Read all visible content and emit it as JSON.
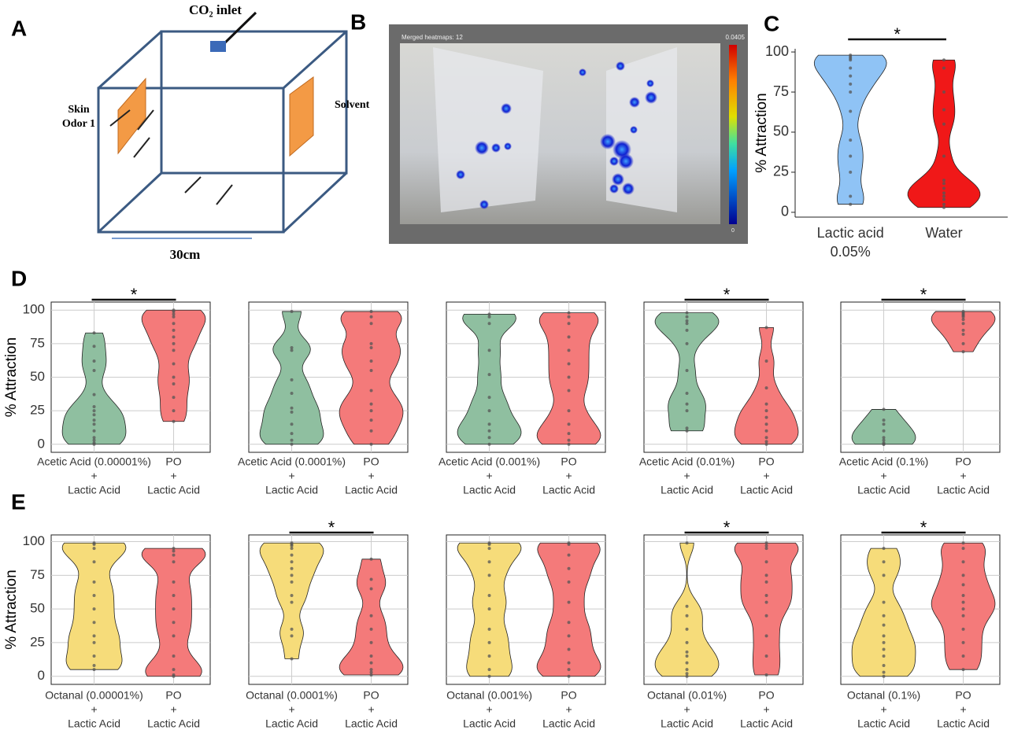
{
  "diagram": {
    "panel": "A",
    "inlet": "CO₂ inlet",
    "left_label": [
      "Skin",
      "Odor 1"
    ],
    "right_label": "Solvent",
    "scale": "30cm"
  },
  "heatmap": {
    "panel": "B",
    "caption": "Merged heatmaps: 12",
    "cbar_max": "0.0405",
    "cbar_min": "0"
  },
  "chart_data": [
    {
      "type": "violin",
      "panel": "C",
      "ylabel": "% Attraction",
      "ylim": [
        -3,
        102
      ],
      "yticks": [
        0,
        25,
        50,
        75,
        100
      ],
      "grid": false,
      "significance": "*",
      "categories": [
        [
          "Lactic acid",
          "0.05%"
        ],
        [
          "Water"
        ]
      ],
      "series": [
        {
          "color": "#8fc3f5",
          "values": [
            98,
            97,
            96,
            95,
            90,
            85,
            80,
            75,
            63,
            45,
            35,
            25,
            10,
            5
          ]
        },
        {
          "color": "#f01818",
          "values": [
            95,
            90,
            75,
            64,
            55,
            35,
            20,
            18,
            15,
            12,
            10,
            8,
            5,
            3
          ]
        }
      ]
    },
    {
      "type": "violin",
      "panel": "D",
      "ylabel": "% Attraction",
      "ylim": [
        -6,
        106
      ],
      "yticks": [
        0,
        25,
        50,
        75,
        100
      ],
      "tick_labels": true,
      "grid": true,
      "significance": "*",
      "categories": [
        [
          "Acetic Acid (0.00001%)",
          "+",
          "Lactic Acid"
        ],
        [
          "PO",
          "+",
          "Lactic Acid"
        ]
      ],
      "series": [
        {
          "color": "#8fbfa0",
          "values": [
            83,
            73,
            62,
            55,
            37,
            28,
            25,
            22,
            18,
            15,
            10,
            5,
            3,
            1,
            0
          ]
        },
        {
          "color": "#f47a7a",
          "values": [
            100,
            99,
            97,
            95,
            90,
            85,
            80,
            75,
            70,
            60,
            50,
            45,
            35,
            25,
            17
          ]
        }
      ]
    },
    {
      "type": "violin",
      "ylim": [
        -6,
        106
      ],
      "yticks": [
        0,
        25,
        50,
        75,
        100
      ],
      "tick_labels": false,
      "grid": true,
      "categories": [
        [
          "Acetic Acid (0.0001%)",
          "+",
          "Lactic Acid"
        ],
        [
          "PO",
          "+",
          "Lactic Acid"
        ]
      ],
      "series": [
        {
          "color": "#8fbfa0",
          "values": [
            99,
            72,
            70,
            48,
            38,
            27,
            24,
            15,
            8,
            3,
            0
          ]
        },
        {
          "color": "#f47a7a",
          "values": [
            99,
            95,
            90,
            75,
            72,
            62,
            55,
            40,
            30,
            25,
            18,
            10,
            0
          ]
        }
      ]
    },
    {
      "type": "violin",
      "ylim": [
        -6,
        106
      ],
      "yticks": [
        0,
        25,
        50,
        75,
        100
      ],
      "tick_labels": false,
      "grid": true,
      "categories": [
        [
          "Acetic Acid (0.001%)",
          "+",
          "Lactic Acid"
        ],
        [
          "PO",
          "+",
          "Lactic Acid"
        ]
      ],
      "series": [
        {
          "color": "#8fbfa0",
          "values": [
            97,
            95,
            90,
            70,
            52,
            35,
            25,
            15,
            10,
            5,
            0
          ]
        },
        {
          "color": "#f47a7a",
          "values": [
            98,
            95,
            90,
            80,
            70,
            60,
            50,
            40,
            25,
            15,
            8,
            3,
            0
          ]
        }
      ]
    },
    {
      "type": "violin",
      "ylim": [
        -6,
        106
      ],
      "yticks": [
        0,
        25,
        50,
        75,
        100
      ],
      "tick_labels": false,
      "grid": true,
      "significance": "*",
      "categories": [
        [
          "Acetic Acid (0.01%)",
          "+",
          "Lactic Acid"
        ],
        [
          "PO",
          "+",
          "Lactic Acid"
        ]
      ],
      "series": [
        {
          "color": "#8fbfa0",
          "values": [
            98,
            95,
            92,
            90,
            85,
            75,
            55,
            38,
            30,
            25,
            12,
            10
          ]
        },
        {
          "color": "#f47a7a",
          "values": [
            87,
            62,
            42,
            30,
            25,
            20,
            15,
            10,
            5,
            2,
            0
          ]
        }
      ]
    },
    {
      "type": "violin",
      "ylim": [
        -6,
        106
      ],
      "yticks": [
        0,
        25,
        50,
        75,
        100
      ],
      "tick_labels": false,
      "grid": true,
      "significance": "*",
      "categories": [
        [
          "Acetic Acid (0.1%)",
          "+",
          "Lactic Acid"
        ],
        [
          "PO",
          "+",
          "Lactic Acid"
        ]
      ],
      "series": [
        {
          "color": "#8fbfa0",
          "values": [
            26,
            18,
            15,
            10,
            5,
            3,
            1,
            0,
            0
          ]
        },
        {
          "color": "#f47a7a",
          "values": [
            99,
            98,
            97,
            96,
            95,
            93,
            90,
            85,
            82,
            75,
            69
          ]
        }
      ]
    },
    {
      "type": "violin",
      "panel": "E",
      "ylabel": "% Attraction",
      "ylim": [
        -6,
        105
      ],
      "yticks": [
        0,
        25,
        50,
        75,
        100
      ],
      "tick_labels": true,
      "grid": true,
      "categories": [
        [
          "Octanal (0.00001%)",
          "+",
          "Lactic Acid"
        ],
        [
          "PO",
          "+",
          "Lactic Acid"
        ]
      ],
      "series": [
        {
          "color": "#f6dc7a",
          "values": [
            99,
            98,
            95,
            85,
            70,
            60,
            50,
            40,
            30,
            25,
            15,
            8,
            5
          ]
        },
        {
          "color": "#f47a7a",
          "values": [
            95,
            93,
            90,
            85,
            70,
            60,
            50,
            40,
            30,
            15,
            5,
            1,
            0
          ]
        }
      ]
    },
    {
      "type": "violin",
      "ylim": [
        -6,
        105
      ],
      "yticks": [
        0,
        25,
        50,
        75,
        100
      ],
      "tick_labels": false,
      "grid": true,
      "significance": "*",
      "categories": [
        [
          "Octanal (0.0001%)",
          "+",
          "Lactic Acid"
        ],
        [
          "PO",
          "+",
          "Lactic Acid"
        ]
      ],
      "series": [
        {
          "color": "#f6dc7a",
          "values": [
            99,
            98,
            97,
            95,
            90,
            85,
            80,
            75,
            70,
            60,
            55,
            35,
            30,
            13
          ]
        },
        {
          "color": "#f47a7a",
          "values": [
            87,
            72,
            65,
            45,
            35,
            25,
            15,
            10,
            5,
            3,
            1
          ]
        }
      ]
    },
    {
      "type": "violin",
      "ylim": [
        -6,
        105
      ],
      "yticks": [
        0,
        25,
        50,
        75,
        100
      ],
      "tick_labels": false,
      "grid": true,
      "categories": [
        [
          "Octanal (0.001%)",
          "+",
          "Lactic Acid"
        ],
        [
          "PO",
          "+",
          "Lactic Acid"
        ]
      ],
      "series": [
        {
          "color": "#f6dc7a",
          "values": [
            99,
            98,
            95,
            85,
            75,
            60,
            50,
            35,
            25,
            15,
            5,
            0
          ]
        },
        {
          "color": "#f47a7a",
          "values": [
            99,
            98,
            90,
            80,
            70,
            55,
            40,
            30,
            20,
            10,
            5,
            0
          ]
        }
      ]
    },
    {
      "type": "violin",
      "ylim": [
        -6,
        105
      ],
      "yticks": [
        0,
        25,
        50,
        75,
        100
      ],
      "tick_labels": false,
      "grid": true,
      "significance": "*",
      "categories": [
        [
          "Octanal (0.01%)",
          "+",
          "Lactic Acid"
        ],
        [
          "PO",
          "+",
          "Lactic Acid"
        ]
      ],
      "series": [
        {
          "color": "#f6dc7a",
          "values": [
            99,
            52,
            45,
            35,
            25,
            18,
            15,
            10,
            5,
            2,
            0
          ]
        },
        {
          "color": "#f47a7a",
          "values": [
            99,
            97,
            95,
            85,
            75,
            70,
            60,
            55,
            45,
            30,
            15,
            1
          ]
        }
      ]
    },
    {
      "type": "violin",
      "ylim": [
        -6,
        105
      ],
      "yticks": [
        0,
        25,
        50,
        75,
        100
      ],
      "tick_labels": false,
      "grid": true,
      "significance": "*",
      "categories": [
        [
          "Octanal (0.1%)",
          "+",
          "Lactic Acid"
        ],
        [
          "PO",
          "+",
          "Lactic Acid"
        ]
      ],
      "series": [
        {
          "color": "#f6dc7a",
          "values": [
            95,
            85,
            75,
            55,
            45,
            38,
            30,
            25,
            20,
            15,
            8,
            3,
            0
          ]
        },
        {
          "color": "#f47a7a",
          "values": [
            99,
            95,
            85,
            75,
            68,
            60,
            55,
            50,
            45,
            35,
            25,
            15,
            5
          ]
        }
      ]
    }
  ]
}
